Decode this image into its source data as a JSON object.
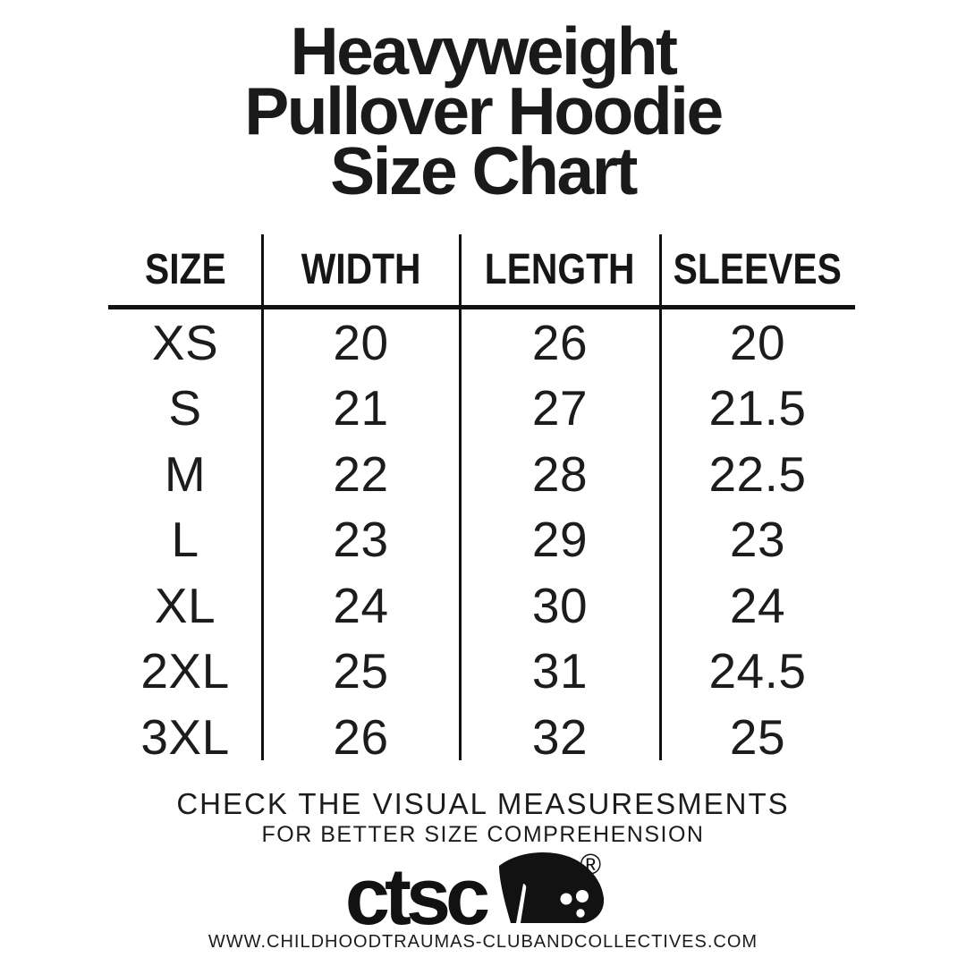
{
  "title": {
    "lines": [
      "Heavyweight",
      "Pullover Hoodie",
      "Size Chart"
    ]
  },
  "table": {
    "columns": [
      "SIZE",
      "WIDTH",
      "LENGTH",
      "SLEEVES"
    ],
    "rows": [
      {
        "size": "XS",
        "width": "20",
        "length": "26",
        "sleeves": "20"
      },
      {
        "size": "S",
        "width": "21",
        "length": "27",
        "sleeves": "21.5"
      },
      {
        "size": "M",
        "width": "22",
        "length": "28",
        "sleeves": "22.5"
      },
      {
        "size": "L",
        "width": "23",
        "length": "29",
        "sleeves": "23"
      },
      {
        "size": "XL",
        "width": "24",
        "length": "30",
        "sleeves": "24"
      },
      {
        "size": "2XL",
        "width": "25",
        "length": "31",
        "sleeves": "24.5"
      },
      {
        "size": "3XL",
        "width": "26",
        "length": "32",
        "sleeves": "25"
      }
    ]
  },
  "footer": {
    "line1": "CHECK THE VISUAL MEASURESMENTS",
    "line2": "FOR BETTER SIZE COMPREHENSION"
  },
  "logo": {
    "text": "ctsc",
    "registered": "®",
    "icon": "hooded-figure-icon"
  },
  "website": "WWW.CHILDHOODTRAUMAS-CLUBANDCOLLECTIVES.COM",
  "colors": {
    "background": "#ffffff",
    "text": "#1a1a1a",
    "rule": "#111111"
  }
}
